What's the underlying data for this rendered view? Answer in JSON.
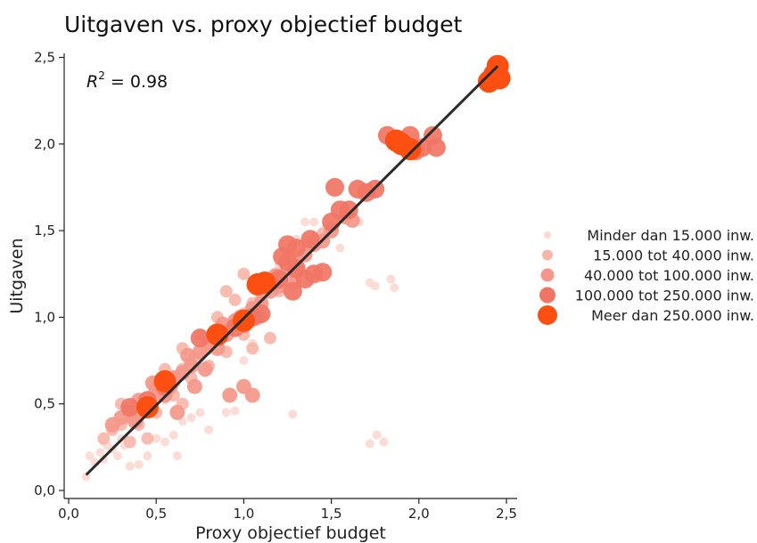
{
  "chart_data": {
    "type": "scatter",
    "title": "Uitgaven vs. proxy objectief budget",
    "xlabel": "Proxy objectief budget",
    "ylabel": "Uitgaven",
    "xlim": [
      0.0,
      2.5
    ],
    "ylim": [
      0.0,
      2.5
    ],
    "x_ticks": [
      "0,0",
      "0,5",
      "1,0",
      "1,5",
      "2,0",
      "2,5"
    ],
    "y_ticks": [
      "0,0",
      "0,5",
      "1,0",
      "1,5",
      "2,0",
      "2,5"
    ],
    "annotation": {
      "prefix": "R",
      "superscript": "2",
      "suffix": " = 0.98"
    },
    "grid": false,
    "legend_position": "right",
    "fit_line": {
      "x": [
        0.1,
        2.45
      ],
      "y": [
        0.09,
        2.45
      ],
      "color": "#2b2b2b"
    },
    "series": [
      {
        "name": "Minder dan 15.000 inw.",
        "color": "#fbd9d3",
        "size": "smallest",
        "points": [
          [
            0.1,
            0.08
          ],
          [
            0.12,
            0.2
          ],
          [
            0.15,
            0.16
          ],
          [
            0.18,
            0.22
          ],
          [
            0.2,
            0.18
          ],
          [
            0.22,
            0.26
          ],
          [
            0.25,
            0.24
          ],
          [
            0.28,
            0.2
          ],
          [
            0.3,
            0.3
          ],
          [
            0.32,
            0.26
          ],
          [
            0.35,
            0.14
          ],
          [
            0.4,
            0.15
          ],
          [
            0.45,
            0.2
          ],
          [
            0.5,
            0.3
          ],
          [
            0.55,
            0.28
          ],
          [
            0.6,
            0.32
          ],
          [
            0.62,
            0.2
          ],
          [
            0.65,
            0.4
          ],
          [
            0.7,
            0.42
          ],
          [
            0.75,
            0.45
          ],
          [
            0.8,
            0.35
          ],
          [
            0.9,
            0.45
          ],
          [
            0.95,
            0.46
          ],
          [
            1.0,
            0.75
          ],
          [
            1.05,
            0.85
          ],
          [
            1.28,
            0.44
          ],
          [
            1.4,
            1.55
          ],
          [
            1.45,
            1.5
          ],
          [
            1.5,
            1.48
          ],
          [
            1.55,
            1.4
          ],
          [
            1.66,
            1.55
          ],
          [
            1.72,
            1.2
          ],
          [
            1.75,
            1.18
          ],
          [
            1.72,
            0.27
          ],
          [
            1.76,
            0.32
          ],
          [
            1.8,
            0.28
          ],
          [
            1.84,
            1.22
          ],
          [
            1.86,
            1.17
          ],
          [
            0.2,
            0.28
          ],
          [
            0.45,
            0.55
          ],
          [
            0.55,
            0.52
          ],
          [
            0.7,
            0.62
          ],
          [
            0.85,
            0.9
          ],
          [
            1.1,
            1.05
          ],
          [
            1.2,
            1.3
          ],
          [
            1.3,
            1.45
          ],
          [
            1.35,
            1.55
          ]
        ]
      },
      {
        "name": "15.000 tot 40.000 inw.",
        "color": "#f8b6aa",
        "size": "small",
        "points": [
          [
            0.2,
            0.3
          ],
          [
            0.25,
            0.35
          ],
          [
            0.3,
            0.38
          ],
          [
            0.35,
            0.42
          ],
          [
            0.4,
            0.45
          ],
          [
            0.45,
            0.5
          ],
          [
            0.5,
            0.55
          ],
          [
            0.55,
            0.6
          ],
          [
            0.6,
            0.62
          ],
          [
            0.65,
            0.7
          ],
          [
            0.7,
            0.75
          ],
          [
            0.75,
            0.78
          ],
          [
            0.8,
            0.82
          ],
          [
            0.85,
            0.88
          ],
          [
            0.9,
            0.92
          ],
          [
            0.95,
            0.95
          ],
          [
            1.0,
            1.02
          ],
          [
            1.05,
            1.08
          ],
          [
            1.1,
            1.12
          ],
          [
            1.15,
            1.2
          ],
          [
            1.2,
            1.25
          ],
          [
            1.25,
            1.3
          ],
          [
            1.3,
            1.35
          ],
          [
            1.35,
            1.42
          ],
          [
            1.4,
            1.45
          ],
          [
            1.45,
            1.48
          ],
          [
            1.5,
            1.52
          ],
          [
            0.3,
            0.5
          ],
          [
            0.4,
            0.38
          ],
          [
            0.5,
            0.45
          ],
          [
            0.6,
            0.55
          ],
          [
            0.7,
            0.65
          ],
          [
            0.8,
            0.72
          ],
          [
            0.9,
            0.8
          ],
          [
            1.0,
            0.9
          ],
          [
            1.1,
            1.0
          ],
          [
            0.55,
            0.7
          ],
          [
            0.65,
            0.82
          ],
          [
            0.75,
            0.9
          ],
          [
            0.85,
            1.0
          ],
          [
            0.95,
            1.1
          ],
          [
            1.05,
            1.18
          ],
          [
            1.0,
            1.25
          ],
          [
            0.9,
            1.15
          ],
          [
            1.2,
            1.15
          ],
          [
            1.3,
            1.22
          ],
          [
            1.15,
            0.88
          ],
          [
            1.05,
            0.82
          ],
          [
            0.65,
            0.5
          ],
          [
            0.45,
            0.3
          ],
          [
            0.35,
            0.28
          ]
        ]
      },
      {
        "name": "40.000 tot 100.000 inw.",
        "color": "#f4978a",
        "size": "medium",
        "points": [
          [
            0.25,
            0.38
          ],
          [
            0.35,
            0.45
          ],
          [
            0.4,
            0.52
          ],
          [
            0.45,
            0.48
          ],
          [
            0.5,
            0.58
          ],
          [
            0.55,
            0.55
          ],
          [
            0.6,
            0.65
          ],
          [
            0.65,
            0.68
          ],
          [
            0.7,
            0.72
          ],
          [
            0.75,
            0.8
          ],
          [
            0.8,
            0.85
          ],
          [
            0.85,
            0.82
          ],
          [
            0.9,
            0.9
          ],
          [
            0.95,
            0.98
          ],
          [
            1.0,
            0.95
          ],
          [
            1.05,
            1.05
          ],
          [
            1.1,
            1.08
          ],
          [
            1.15,
            1.15
          ],
          [
            1.2,
            1.18
          ],
          [
            1.25,
            1.28
          ],
          [
            1.3,
            1.3
          ],
          [
            1.35,
            1.36
          ],
          [
            1.4,
            1.42
          ],
          [
            1.45,
            1.44
          ],
          [
            1.5,
            1.5
          ],
          [
            1.58,
            1.58
          ],
          [
            1.62,
            1.56
          ],
          [
            0.3,
            0.42
          ],
          [
            0.38,
            0.4
          ],
          [
            0.48,
            0.62
          ],
          [
            0.58,
            0.6
          ],
          [
            0.68,
            0.78
          ],
          [
            0.78,
            0.7
          ],
          [
            0.88,
            0.96
          ],
          [
            0.98,
            1.0
          ],
          [
            1.08,
            1.0
          ],
          [
            1.18,
            1.24
          ],
          [
            1.28,
            1.2
          ],
          [
            0.72,
            0.6
          ],
          [
            0.62,
            0.45
          ],
          [
            0.92,
            0.55
          ],
          [
            1.0,
            0.6
          ],
          [
            1.05,
            0.55
          ]
        ]
      },
      {
        "name": "100.000 tot 250.000 inw.",
        "color": "#f17565",
        "size": "large",
        "points": [
          [
            0.35,
            0.48
          ],
          [
            0.45,
            0.52
          ],
          [
            0.55,
            0.6
          ],
          [
            0.75,
            0.88
          ],
          [
            0.85,
            0.9
          ],
          [
            0.95,
            0.94
          ],
          [
            1.05,
            1.0
          ],
          [
            1.1,
            1.02
          ],
          [
            1.15,
            1.2
          ],
          [
            1.2,
            1.22
          ],
          [
            1.25,
            1.32
          ],
          [
            1.3,
            1.28
          ],
          [
            1.35,
            1.22
          ],
          [
            1.4,
            1.25
          ],
          [
            1.45,
            1.26
          ],
          [
            1.3,
            1.4
          ],
          [
            1.38,
            1.45
          ],
          [
            1.5,
            1.55
          ],
          [
            1.55,
            1.62
          ],
          [
            1.6,
            1.62
          ],
          [
            1.65,
            1.74
          ],
          [
            1.7,
            1.72
          ],
          [
            1.75,
            1.74
          ],
          [
            1.52,
            1.75
          ],
          [
            1.82,
            2.05
          ],
          [
            1.9,
            2.02
          ],
          [
            1.95,
            2.05
          ],
          [
            1.98,
            1.96
          ],
          [
            2.02,
            1.98
          ],
          [
            2.08,
            2.05
          ],
          [
            2.1,
            1.98
          ],
          [
            1.25,
            1.42
          ],
          [
            1.22,
            1.35
          ],
          [
            1.28,
            1.15
          ]
        ]
      },
      {
        "name": "Meer dan 250.000 inw.",
        "color": "#fe4f12",
        "size": "largest",
        "points": [
          [
            0.45,
            0.48
          ],
          [
            0.55,
            0.63
          ],
          [
            0.85,
            0.9
          ],
          [
            1.0,
            0.98
          ],
          [
            1.08,
            1.19
          ],
          [
            1.12,
            1.2
          ],
          [
            1.87,
            2.02
          ],
          [
            1.9,
            2.0
          ],
          [
            1.95,
            1.97
          ],
          [
            2.4,
            2.36
          ],
          [
            2.43,
            2.4
          ],
          [
            2.45,
            2.45
          ],
          [
            2.46,
            2.38
          ]
        ]
      }
    ]
  }
}
